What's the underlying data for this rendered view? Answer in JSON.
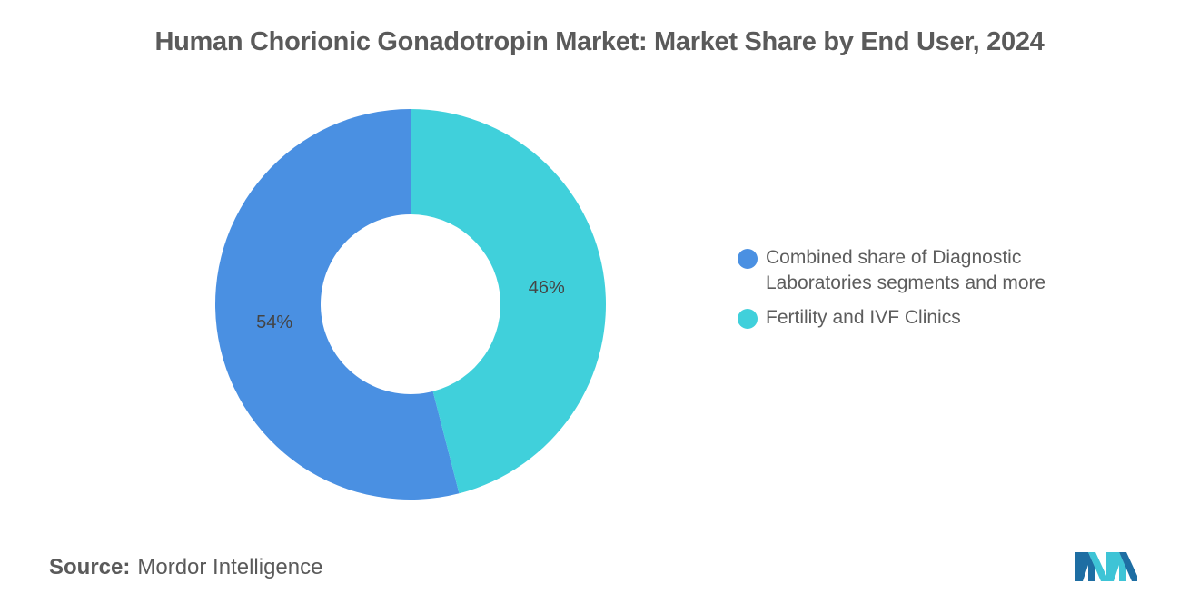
{
  "chart_data": {
    "type": "pie",
    "variant": "donut",
    "title": "Human Chorionic Gonadotropin Market: Market Share by End User, 2024",
    "series": [
      {
        "name": "Combined share of Diagnostic Laboratories segments and more",
        "value": 54,
        "label": "54%",
        "color": "#4a90e2"
      },
      {
        "name": "Fertility and IVF Clinics",
        "value": 46,
        "label": "46%",
        "color": "#40d0db"
      }
    ],
    "legend_position": "right"
  },
  "source": {
    "label": "Source:",
    "text": "Mordor Intelligence"
  },
  "logo": {
    "icon": "mordor-intelligence-logo",
    "colors": [
      "#1e6ea3",
      "#3ec4d6"
    ]
  }
}
